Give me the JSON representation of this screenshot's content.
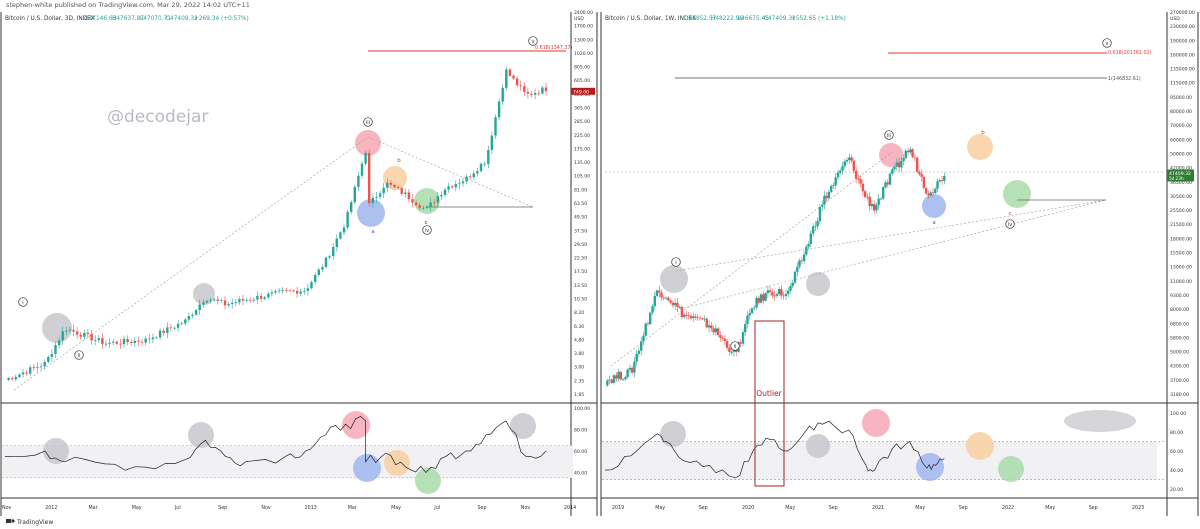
{
  "header_text": "stephen-white published on TradingView.com, Mar 29, 2022 14:02 UTC+11",
  "watermark": "@decodejar",
  "footer_brand": "TradingView",
  "colors": {
    "up": "#26a69a",
    "down": "#ef5350",
    "fib": "#e53935",
    "rsi_line": "#222222",
    "pink": "#f7a8b4",
    "blue": "#9fb6ef",
    "orange": "#f9cfa0",
    "green": "#a9dcaa",
    "gray": "#c7c7cc",
    "outlier": "#a32323",
    "price_tag_left": "#b71c1c",
    "price_tag_right": "#2e7d32"
  },
  "panels": [
    {
      "id": "left",
      "legend": "Bitcoin / U.S. Dollar, 3D, INDEX",
      "ohlc": {
        "o": "O47146.63",
        "h": "H47637.87",
        "l": "L47070.71",
        "c": "C47409.32",
        "chg": "+269.34 (+0.57%)"
      },
      "price_tag": "749.00",
      "price_tag_sub": "",
      "fib_label": "0.618(1347.37)",
      "fib2_label": "",
      "price_axis": [
        "2400.00",
        "1700.00",
        "1300.00",
        "1020.00",
        "805.00",
        "605.00",
        "485.00",
        "365.00",
        "285.00",
        "225.00",
        "175.00",
        "135.00",
        "105.00",
        "81.00",
        "63.50",
        "49.50",
        "37.50",
        "29.50",
        "22.50",
        "17.50",
        "13.50",
        "10.50",
        "8.20",
        "6.30",
        "4.80",
        "3.80",
        "3.00",
        "2.35",
        "1.85"
      ],
      "price_unit": "USD",
      "rsi_axis": [
        "100.00",
        "80.00",
        "60.00",
        "40.00"
      ],
      "time_axis": [
        "Nov",
        "2012",
        "Mar",
        "May",
        "Jul",
        "Sep",
        "Nov",
        "2013",
        "Mar",
        "May",
        "Jul",
        "Sep",
        "Nov",
        "2014"
      ],
      "waves": [
        "i",
        "ii",
        "iii",
        "a",
        "b",
        "c",
        "iv",
        "v"
      ],
      "outlier_label": ""
    },
    {
      "id": "right",
      "legend": "Bitcoin / U.S. Dollar, 1W, INDEX",
      "ohlc": {
        "o": "O46852.57",
        "h": "H48222.96",
        "l": "L46675.45",
        "c": "C47409.32",
        "chg": "+552.65 (+1.18%)"
      },
      "price_tag": "47409.32",
      "price_tag_sub": "5d 23h",
      "fib_label": "0.618(201361.02)",
      "fib2_label": "1(146832.61)",
      "price_axis": [
        "270000.00",
        "230000.00",
        "190000.00",
        "160000.00",
        "135000.00",
        "115000.00",
        "95000.00",
        "80000.00",
        "70000.00",
        "60000.00",
        "50000.00",
        "42000.00",
        "36500.00",
        "30500.00",
        "25500.00",
        "21500.00",
        "18000.00",
        "15500.00",
        "13000.00",
        "11000.00",
        "9300.00",
        "8000.00",
        "6800.00",
        "5800.00",
        "5000.00",
        "4300.00",
        "3700.00",
        "3180.00"
      ],
      "price_unit": "USD",
      "rsi_axis": [
        "100.00",
        "80.00",
        "60.00",
        "40.00",
        "20.00"
      ],
      "time_axis": [
        "2019",
        "May",
        "Sep",
        "2020",
        "May",
        "Sep",
        "2021",
        "May",
        "Sep",
        "2022",
        "May",
        "Sep",
        "2023"
      ],
      "waves": [
        "i",
        "ii",
        "iii",
        "a",
        "b",
        "c",
        "iv",
        "v"
      ],
      "outlier_label": "Outlier"
    }
  ],
  "chart_data": [
    {
      "type": "candlestick",
      "title": "Bitcoin / U.S. Dollar, 3D, INDEX",
      "y_scale": "log",
      "ylim": [
        1.6,
        2700
      ],
      "x_range": [
        "2011-10",
        "2014-02"
      ],
      "key_points": {
        "dates": [
          "2011-10",
          "2011-12",
          "2012-01",
          "2012-03",
          "2012-05",
          "2012-07",
          "2012-08",
          "2012-09",
          "2012-10",
          "2012-12",
          "2013-01",
          "2013-02",
          "2013-03",
          "2013-04",
          "2013-04",
          "2013-05",
          "2013-06",
          "2013-07",
          "2013-08",
          "2013-09",
          "2013-10",
          "2013-11",
          "2013-12",
          "2014-01"
        ],
        "close": [
          2.3,
          3.2,
          6.5,
          4.8,
          5.1,
          7.5,
          12,
          10.5,
          11.5,
          13.5,
          14,
          25,
          55,
          230,
          70,
          120,
          95,
          70,
          110,
          130,
          190,
          1150,
          700,
          800
        ]
      },
      "fib_level": 1347.37,
      "last_price": 749.0,
      "rsi": [
        55,
        60,
        50,
        48,
        45,
        52,
        70,
        55,
        50,
        55,
        60,
        75,
        85,
        88,
        50,
        58,
        45,
        40,
        55,
        60,
        75,
        88,
        55,
        60
      ]
    },
    {
      "type": "candlestick",
      "title": "Bitcoin / U.S. Dollar, 1W, INDEX",
      "y_scale": "log",
      "ylim": [
        2900,
        290000
      ],
      "x_range": [
        "2018-12",
        "2023-02"
      ],
      "key_points": {
        "dates": [
          "2018-12",
          "2019-03",
          "2019-06",
          "2019-07",
          "2019-09",
          "2019-12",
          "2020-03",
          "2020-05",
          "2020-07",
          "2020-09",
          "2020-11",
          "2021-01",
          "2021-04",
          "2021-06",
          "2021-07",
          "2021-09",
          "2021-11",
          "2022-01",
          "2022-02",
          "2022-03"
        ],
        "close": [
          3600,
          4000,
          11000,
          10500,
          8200,
          7200,
          5000,
          9200,
          11000,
          10500,
          18000,
          33000,
          58000,
          35000,
          31000,
          47000,
          65000,
          38000,
          40000,
          47409.32
        ]
      },
      "fib_level": 201361.02,
      "fib2_level": 146832.61,
      "last_price": 47409.32,
      "rsi": [
        40,
        55,
        78,
        70,
        50,
        45,
        32,
        60,
        72,
        60,
        80,
        88,
        82,
        45,
        40,
        62,
        70,
        42,
        45,
        52
      ]
    }
  ]
}
